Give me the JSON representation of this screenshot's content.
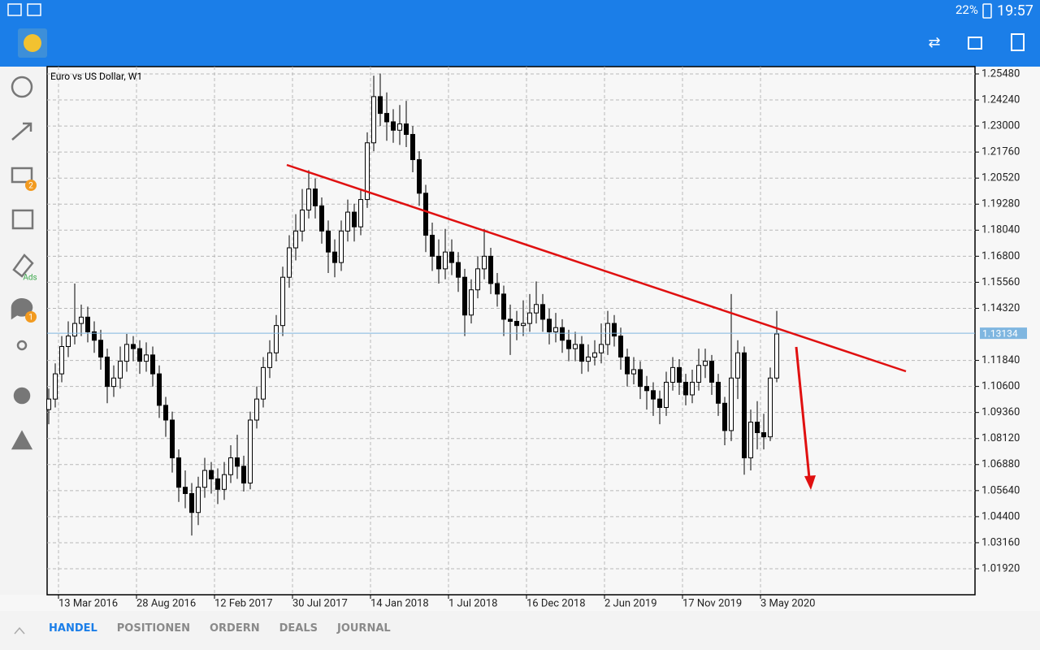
{
  "status_bar": {
    "battery": "22%",
    "time": "19:57"
  },
  "sidebar": {
    "mail_badge": "2",
    "ads_label": "Ads",
    "chat_badge": "1"
  },
  "tabs": [
    "HANDEL",
    "POSITIONEN",
    "ORDERN",
    "DEALS",
    "JOURNAL"
  ],
  "chart_data": {
    "type": "candlestick",
    "title": "Euro vs US Dollar, W1",
    "bull_color": "#ffffff",
    "bear_color": "#000000",
    "wick_color": "#000000",
    "grid": true,
    "current_price": 1.13134,
    "current_price_color": "#7fb6e0",
    "xlim": [
      -0.25,
      142.5
    ],
    "ylim": [
      1.00682,
      1.25828
    ],
    "xticks": [
      {
        "value": 1.5,
        "label": "13 Mar 2016"
      },
      {
        "value": 13.5,
        "label": "28 Aug 2016"
      },
      {
        "value": 25.5,
        "label": "12 Feb 2017"
      },
      {
        "value": 37.5,
        "label": "30 Jul 2017"
      },
      {
        "value": 49.5,
        "label": "14 Jan 2018"
      },
      {
        "value": 61.5,
        "label": "1 Jul 2018"
      },
      {
        "value": 73.5,
        "label": "16 Dec 2018"
      },
      {
        "value": 85.5,
        "label": "2 Jun 2019"
      },
      {
        "value": 97.5,
        "label": "17 Nov 2019"
      },
      {
        "value": 109.5,
        "label": "3 May 2020"
      }
    ],
    "yticks": [
      {
        "value": 1.2548,
        "label": "1.25480"
      },
      {
        "value": 1.2424,
        "label": "1.24240"
      },
      {
        "value": 1.23,
        "label": "1.23000"
      },
      {
        "value": 1.2176,
        "label": "1.21760"
      },
      {
        "value": 1.2052,
        "label": "1.20520"
      },
      {
        "value": 1.1928,
        "label": "1.19280"
      },
      {
        "value": 1.1804,
        "label": "1.18040"
      },
      {
        "value": 1.168,
        "label": "1.16800"
      },
      {
        "value": 1.1556,
        "label": "1.15560"
      },
      {
        "value": 1.1432,
        "label": "1.14320"
      },
      {
        "value": 1.1184,
        "label": "1.11840"
      },
      {
        "value": 1.106,
        "label": "1.10600"
      },
      {
        "value": 1.0936,
        "label": "1.09360"
      },
      {
        "value": 1.0812,
        "label": "1.08120"
      },
      {
        "value": 1.0688,
        "label": "1.06880"
      },
      {
        "value": 1.0564,
        "label": "1.05640"
      },
      {
        "value": 1.044,
        "label": "1.04400"
      },
      {
        "value": 1.0316,
        "label": "1.03160"
      },
      {
        "value": 1.0192,
        "label": "1.01920"
      }
    ],
    "candles": [
      [
        1.095,
        1.105,
        1.088,
        1.1
      ],
      [
        1.1,
        1.117,
        1.096,
        1.112
      ],
      [
        1.112,
        1.13,
        1.108,
        1.125
      ],
      [
        1.125,
        1.137,
        1.12,
        1.13
      ],
      [
        1.13,
        1.155,
        1.126,
        1.136
      ],
      [
        1.136,
        1.145,
        1.13,
        1.139
      ],
      [
        1.139,
        1.144,
        1.127,
        1.132
      ],
      [
        1.132,
        1.137,
        1.122,
        1.128
      ],
      [
        1.128,
        1.133,
        1.114,
        1.12
      ],
      [
        1.12,
        1.124,
        1.098,
        1.106
      ],
      [
        1.106,
        1.116,
        1.101,
        1.11
      ],
      [
        1.11,
        1.125,
        1.105,
        1.118
      ],
      [
        1.118,
        1.131,
        1.113,
        1.126
      ],
      [
        1.126,
        1.13,
        1.118,
        1.124
      ],
      [
        1.124,
        1.128,
        1.112,
        1.118
      ],
      [
        1.118,
        1.127,
        1.113,
        1.121
      ],
      [
        1.121,
        1.125,
        1.106,
        1.112
      ],
      [
        1.112,
        1.116,
        1.091,
        1.097
      ],
      [
        1.097,
        1.101,
        1.082,
        1.09
      ],
      [
        1.09,
        1.094,
        1.065,
        1.072
      ],
      [
        1.072,
        1.076,
        1.051,
        1.058
      ],
      [
        1.058,
        1.066,
        1.048,
        1.055
      ],
      [
        1.055,
        1.06,
        1.035,
        1.046
      ],
      [
        1.046,
        1.063,
        1.04,
        1.058
      ],
      [
        1.058,
        1.072,
        1.053,
        1.066
      ],
      [
        1.066,
        1.07,
        1.055,
        1.062
      ],
      [
        1.062,
        1.067,
        1.05,
        1.057
      ],
      [
        1.057,
        1.07,
        1.052,
        1.064
      ],
      [
        1.064,
        1.078,
        1.06,
        1.072
      ],
      [
        1.072,
        1.083,
        1.062,
        1.068
      ],
      [
        1.068,
        1.073,
        1.056,
        1.06
      ],
      [
        1.06,
        1.094,
        1.057,
        1.09
      ],
      [
        1.09,
        1.106,
        1.086,
        1.1
      ],
      [
        1.1,
        1.12,
        1.096,
        1.115
      ],
      [
        1.115,
        1.128,
        1.11,
        1.122
      ],
      [
        1.122,
        1.14,
        1.118,
        1.135
      ],
      [
        1.135,
        1.163,
        1.13,
        1.158
      ],
      [
        1.158,
        1.178,
        1.153,
        1.172
      ],
      [
        1.172,
        1.188,
        1.166,
        1.18
      ],
      [
        1.18,
        1.2,
        1.175,
        1.19
      ],
      [
        1.19,
        1.209,
        1.186,
        1.2
      ],
      [
        1.2,
        1.205,
        1.186,
        1.192
      ],
      [
        1.192,
        1.196,
        1.174,
        1.18
      ],
      [
        1.18,
        1.185,
        1.16,
        1.17
      ],
      [
        1.17,
        1.176,
        1.158,
        1.165
      ],
      [
        1.165,
        1.185,
        1.161,
        1.18
      ],
      [
        1.18,
        1.195,
        1.175,
        1.189
      ],
      [
        1.189,
        1.193,
        1.175,
        1.182
      ],
      [
        1.182,
        1.2,
        1.178,
        1.195
      ],
      [
        1.195,
        1.227,
        1.191,
        1.222
      ],
      [
        1.222,
        1.254,
        1.218,
        1.244
      ],
      [
        1.244,
        1.255,
        1.23,
        1.236
      ],
      [
        1.236,
        1.246,
        1.223,
        1.232
      ],
      [
        1.232,
        1.238,
        1.222,
        1.228
      ],
      [
        1.228,
        1.24,
        1.221,
        1.231
      ],
      [
        1.231,
        1.242,
        1.22,
        1.226
      ],
      [
        1.226,
        1.23,
        1.208,
        1.214
      ],
      [
        1.214,
        1.218,
        1.192,
        1.198
      ],
      [
        1.198,
        1.202,
        1.17,
        1.178
      ],
      [
        1.178,
        1.184,
        1.161,
        1.168
      ],
      [
        1.168,
        1.176,
        1.155,
        1.162
      ],
      [
        1.162,
        1.181,
        1.157,
        1.17
      ],
      [
        1.17,
        1.176,
        1.159,
        1.165
      ],
      [
        1.165,
        1.17,
        1.151,
        1.158
      ],
      [
        1.158,
        1.162,
        1.13,
        1.14
      ],
      [
        1.14,
        1.157,
        1.136,
        1.152
      ],
      [
        1.152,
        1.168,
        1.148,
        1.162
      ],
      [
        1.162,
        1.181,
        1.157,
        1.168
      ],
      [
        1.168,
        1.172,
        1.15,
        1.155
      ],
      [
        1.155,
        1.16,
        1.144,
        1.15
      ],
      [
        1.15,
        1.154,
        1.13,
        1.138
      ],
      [
        1.138,
        1.145,
        1.121,
        1.137
      ],
      [
        1.137,
        1.142,
        1.128,
        1.135
      ],
      [
        1.135,
        1.147,
        1.13,
        1.136
      ],
      [
        1.136,
        1.15,
        1.132,
        1.141
      ],
      [
        1.141,
        1.156,
        1.136,
        1.145
      ],
      [
        1.145,
        1.15,
        1.132,
        1.138
      ],
      [
        1.138,
        1.143,
        1.126,
        1.132
      ],
      [
        1.132,
        1.141,
        1.127,
        1.134
      ],
      [
        1.134,
        1.138,
        1.122,
        1.128
      ],
      [
        1.128,
        1.133,
        1.118,
        1.124
      ],
      [
        1.124,
        1.132,
        1.118,
        1.126
      ],
      [
        1.126,
        1.13,
        1.112,
        1.118
      ],
      [
        1.118,
        1.126,
        1.113,
        1.12
      ],
      [
        1.12,
        1.128,
        1.116,
        1.122
      ],
      [
        1.122,
        1.136,
        1.117,
        1.126
      ],
      [
        1.126,
        1.142,
        1.121,
        1.136
      ],
      [
        1.136,
        1.14,
        1.125,
        1.13
      ],
      [
        1.13,
        1.134,
        1.114,
        1.12
      ],
      [
        1.12,
        1.124,
        1.106,
        1.112
      ],
      [
        1.112,
        1.12,
        1.107,
        1.114
      ],
      [
        1.114,
        1.118,
        1.1,
        1.106
      ],
      [
        1.106,
        1.111,
        1.095,
        1.104
      ],
      [
        1.104,
        1.108,
        1.092,
        1.1
      ],
      [
        1.1,
        1.104,
        1.088,
        1.096
      ],
      [
        1.096,
        1.113,
        1.092,
        1.108
      ],
      [
        1.108,
        1.12,
        1.104,
        1.115
      ],
      [
        1.115,
        1.119,
        1.102,
        1.108
      ],
      [
        1.108,
        1.112,
        1.097,
        1.102
      ],
      [
        1.102,
        1.114,
        1.098,
        1.108
      ],
      [
        1.108,
        1.124,
        1.104,
        1.116
      ],
      [
        1.116,
        1.124,
        1.11,
        1.118
      ],
      [
        1.118,
        1.121,
        1.102,
        1.108
      ],
      [
        1.108,
        1.112,
        1.092,
        1.098
      ],
      [
        1.098,
        1.101,
        1.078,
        1.085
      ],
      [
        1.085,
        1.15,
        1.08,
        1.11
      ],
      [
        1.11,
        1.128,
        1.1,
        1.122
      ],
      [
        1.122,
        1.125,
        1.064,
        1.072
      ],
      [
        1.072,
        1.095,
        1.066,
        1.089
      ],
      [
        1.089,
        1.099,
        1.076,
        1.084
      ],
      [
        1.084,
        1.093,
        1.076,
        1.082
      ],
      [
        1.082,
        1.115,
        1.08,
        1.11
      ],
      [
        1.11,
        1.142,
        1.108,
        1.131
      ]
    ]
  }
}
